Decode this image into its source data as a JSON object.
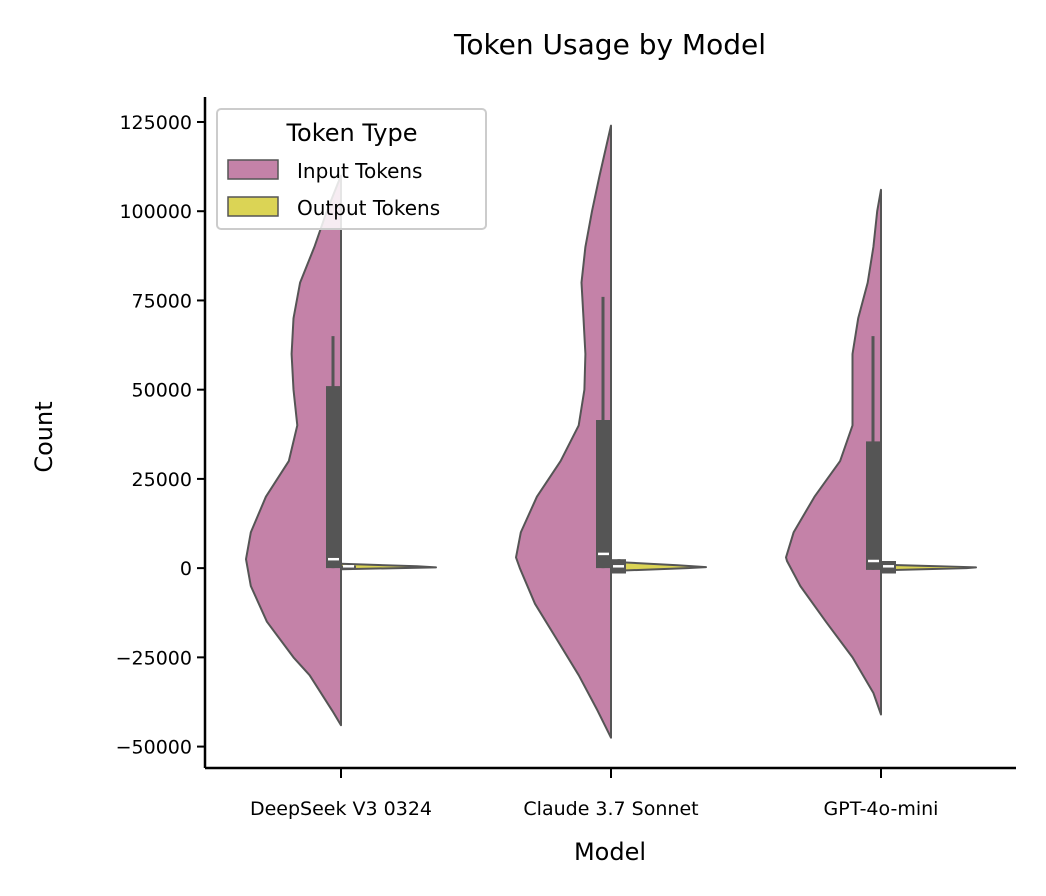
{
  "chart_data": {
    "type": "violin",
    "title": "Token Usage by Model",
    "xlabel": "Model",
    "ylabel": "Count",
    "categories": [
      "DeepSeek V3 0324",
      "Claude 3.7 Sonnet",
      "GPT-4o-mini"
    ],
    "ylim": [
      -56000,
      132000
    ],
    "yticks": [
      -50000,
      -25000,
      0,
      25000,
      50000,
      75000,
      100000,
      125000
    ],
    "ytick_labels": [
      "−50000",
      "−25000",
      "0",
      "25000",
      "50000",
      "75000",
      "100000",
      "125000"
    ],
    "grid": false,
    "split": true,
    "legend": {
      "title": "Token Type",
      "placement": "top-left",
      "entries": [
        "Input Tokens",
        "Output Tokens"
      ]
    },
    "series": [
      {
        "name": "Input Tokens",
        "color": "#c482a8",
        "side": "left",
        "violins": [
          {
            "ymin": -44000,
            "ymax": 110000,
            "profile": [
              [
                -44000,
                0.0
              ],
              [
                -40000,
                0.09
              ],
              [
                -30000,
                0.33
              ],
              [
                -25000,
                0.5
              ],
              [
                -15000,
                0.78
              ],
              [
                -5000,
                0.95
              ],
              [
                2500,
                1.0
              ],
              [
                10000,
                0.95
              ],
              [
                20000,
                0.79
              ],
              [
                30000,
                0.55
              ],
              [
                40000,
                0.46
              ],
              [
                45000,
                0.48
              ],
              [
                50000,
                0.5
              ],
              [
                60000,
                0.52
              ],
              [
                70000,
                0.5
              ],
              [
                80000,
                0.43
              ],
              [
                90000,
                0.28
              ],
              [
                100000,
                0.15
              ],
              [
                110000,
                0.0
              ]
            ],
            "q1": 0,
            "median": 2500,
            "q3": 51000,
            "whisker_low": 0,
            "whisker_high": 65000
          },
          {
            "ymin": -47500,
            "ymax": 124000,
            "profile": [
              [
                -47500,
                0.0
              ],
              [
                -40000,
                0.14
              ],
              [
                -30000,
                0.34
              ],
              [
                -20000,
                0.57
              ],
              [
                -10000,
                0.8
              ],
              [
                0,
                0.96
              ],
              [
                3000,
                1.0
              ],
              [
                10000,
                0.95
              ],
              [
                20000,
                0.78
              ],
              [
                30000,
                0.53
              ],
              [
                40000,
                0.34
              ],
              [
                50000,
                0.28
              ],
              [
                60000,
                0.27
              ],
              [
                70000,
                0.29
              ],
              [
                80000,
                0.31
              ],
              [
                90000,
                0.27
              ],
              [
                100000,
                0.2
              ],
              [
                110000,
                0.12
              ],
              [
                124000,
                0.0
              ]
            ],
            "q1": 0,
            "median": 4000,
            "q3": 41500,
            "whisker_low": 0,
            "whisker_high": 76000
          },
          {
            "ymin": -41000,
            "ymax": 106000,
            "profile": [
              [
                -41000,
                0.0
              ],
              [
                -35000,
                0.08
              ],
              [
                -25000,
                0.3
              ],
              [
                -15000,
                0.58
              ],
              [
                -5000,
                0.85
              ],
              [
                2000,
                0.99
              ],
              [
                3000,
                1.0
              ],
              [
                10000,
                0.92
              ],
              [
                20000,
                0.7
              ],
              [
                30000,
                0.43
              ],
              [
                40000,
                0.3
              ],
              [
                50000,
                0.3
              ],
              [
                60000,
                0.3
              ],
              [
                70000,
                0.24
              ],
              [
                80000,
                0.14
              ],
              [
                90000,
                0.08
              ],
              [
                100000,
                0.04
              ],
              [
                106000,
                0.0
              ]
            ],
            "q1": -500,
            "median": 2000,
            "q3": 35500,
            "whisker_low": -500,
            "whisker_high": 65000
          }
        ]
      },
      {
        "name": "Output Tokens",
        "color": "#dbd455",
        "side": "right",
        "violins": [
          {
            "ymin": -300,
            "ymax": 1200,
            "profile": [
              [
                -300,
                0.0
              ],
              [
                200,
                1.0
              ],
              [
                500,
                0.8
              ],
              [
                1200,
                0.0
              ]
            ],
            "q1": 150,
            "median": 500,
            "q3": 700,
            "whisker_low": 0,
            "whisker_high": 1200
          },
          {
            "ymin": -800,
            "ymax": 1800,
            "profile": [
              [
                -800,
                0.0
              ],
              [
                0,
                0.8
              ],
              [
                300,
                1.0
              ],
              [
                800,
                0.7
              ],
              [
                1800,
                0.0
              ]
            ],
            "q1": -1500,
            "median": 500,
            "q3": 2500,
            "whisker_low": -1500,
            "whisker_high": 2500
          },
          {
            "ymin": -600,
            "ymax": 1000,
            "profile": [
              [
                -600,
                0.0
              ],
              [
                0,
                0.9
              ],
              [
                200,
                1.0
              ],
              [
                500,
                0.6
              ],
              [
                1000,
                0.0
              ]
            ],
            "q1": -1500,
            "median": 500,
            "q3": 2000,
            "whisker_low": -1500,
            "whisker_high": 2000
          }
        ]
      }
    ]
  }
}
